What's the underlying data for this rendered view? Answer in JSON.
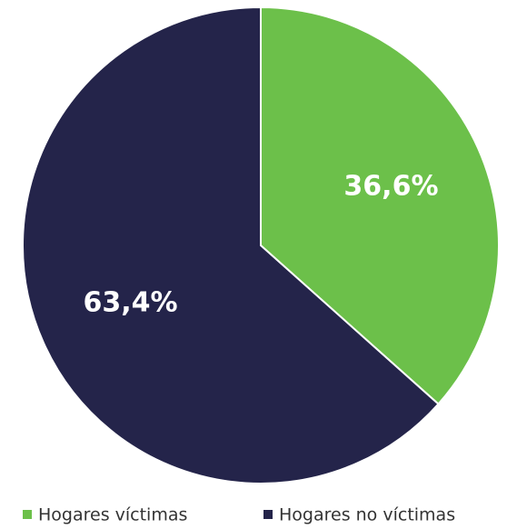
{
  "chart_data": {
    "type": "pie",
    "categories": [
      "Hogares víctimas",
      "Hogares no víctimas"
    ],
    "values": [
      36.6,
      63.4
    ],
    "value_labels": [
      "36,6%",
      "63,4%"
    ],
    "colors": [
      "#6cc04a",
      "#24244a"
    ],
    "legend": "bottom"
  }
}
